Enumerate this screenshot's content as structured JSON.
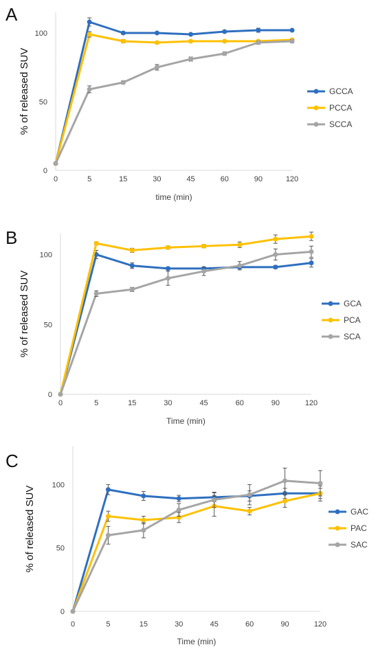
{
  "colors": {
    "blue": "#2E6FBF",
    "yellow": "#FFC000",
    "gray": "#A5A5A5"
  },
  "chart_data": [
    {
      "panel": "A",
      "type": "line",
      "categories": [
        "0",
        "5",
        "15",
        "30",
        "45",
        "60",
        "90",
        "120"
      ],
      "xlabel": "time (min)",
      "ylabel": "% of released SUV",
      "yticks": [
        "0",
        "50",
        "100"
      ],
      "ylim": [
        0,
        115
      ],
      "legend_position": "right",
      "series": [
        {
          "name": "GCCA",
          "color": "#2E6FBF",
          "values": [
            5,
            108,
            100,
            100,
            99,
            101,
            102,
            102
          ],
          "errors": [
            0,
            3,
            0.8,
            0.6,
            0.6,
            0.8,
            1.5,
            0.8
          ]
        },
        {
          "name": "PCCA",
          "color": "#FFC000",
          "values": [
            5,
            99,
            94,
            93,
            94,
            94,
            94,
            95
          ],
          "errors": [
            0,
            2,
            1.2,
            0.8,
            0.8,
            0.8,
            0.8,
            0.8
          ]
        },
        {
          "name": "SCCA",
          "color": "#A5A5A5",
          "values": [
            5,
            59,
            64,
            75,
            81,
            85,
            93,
            94
          ],
          "errors": [
            0,
            2.5,
            1.2,
            2,
            1.5,
            1.2,
            1.2,
            1.2
          ]
        }
      ]
    },
    {
      "panel": "B",
      "type": "line",
      "categories": [
        "0",
        "5",
        "15",
        "30",
        "45",
        "60",
        "90",
        "120"
      ],
      "xlabel": "Time (min)",
      "ylabel": "% of released SUV",
      "yticks": [
        "0",
        "50",
        "100"
      ],
      "ylim": [
        0,
        115
      ],
      "legend_position": "right",
      "series": [
        {
          "name": "GCA",
          "color": "#2E6FBF",
          "values": [
            0,
            100,
            92,
            90,
            90,
            91,
            91,
            94
          ],
          "errors": [
            0,
            3,
            2,
            1,
            1.2,
            1.2,
            1.2,
            3
          ]
        },
        {
          "name": "PCA",
          "color": "#FFC000",
          "values": [
            0,
            108,
            103,
            105,
            106,
            107,
            111,
            113
          ],
          "errors": [
            0,
            1,
            1.5,
            1.2,
            1.2,
            2,
            3,
            3
          ]
        },
        {
          "name": "SCA",
          "color": "#A5A5A5",
          "values": [
            0,
            72,
            75,
            83,
            88,
            92,
            100,
            102
          ],
          "errors": [
            0,
            2,
            1.5,
            5,
            3,
            3,
            4,
            4
          ]
        }
      ]
    },
    {
      "panel": "C",
      "type": "line",
      "categories": [
        "0",
        "5",
        "15",
        "30",
        "45",
        "60",
        "90",
        "120"
      ],
      "xlabel": "Time (min)",
      "ylabel": "% of released SUV",
      "yticks": [
        "0",
        "50",
        "100"
      ],
      "ylim": [
        0,
        130
      ],
      "legend_position": "right",
      "series": [
        {
          "name": "GAC",
          "color": "#2E6FBF",
          "values": [
            0,
            96,
            91,
            89,
            90,
            91,
            93,
            93
          ],
          "errors": [
            0,
            4,
            3.5,
            2.5,
            3.5,
            4,
            4,
            4
          ]
        },
        {
          "name": "PAC",
          "color": "#FFC000",
          "values": [
            0,
            75,
            72,
            74,
            83,
            79,
            87,
            93
          ],
          "errors": [
            0,
            4,
            3,
            4,
            8,
            3,
            5,
            6
          ]
        },
        {
          "name": "SAC",
          "color": "#A5A5A5",
          "values": [
            0,
            60,
            64,
            80,
            88,
            92,
            103,
            101
          ],
          "errors": [
            0,
            7,
            6,
            5,
            6,
            8,
            10,
            10
          ]
        }
      ]
    }
  ]
}
